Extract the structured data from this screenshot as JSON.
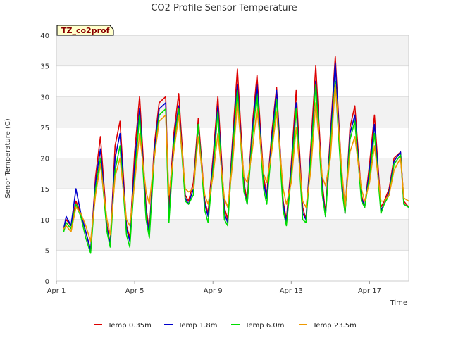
{
  "chart_data": {
    "type": "line",
    "title": "CO2 Profile Sensor Temperature",
    "badge": "TZ_co2prof",
    "xlabel": "Time",
    "ylabel": "Senor Temperature (C)",
    "xlim": [
      "2023-04-01",
      "2023-04-19"
    ],
    "ylim": [
      0,
      40
    ],
    "x_ticks": [
      {
        "date": "2023-04-01",
        "label": "Apr 1"
      },
      {
        "date": "2023-04-05",
        "label": "Apr 5"
      },
      {
        "date": "2023-04-09",
        "label": "Apr 9"
      },
      {
        "date": "2023-04-13",
        "label": "Apr 13"
      },
      {
        "date": "2023-04-17",
        "label": "Apr 17"
      }
    ],
    "y_ticks": [
      0,
      5,
      10,
      15,
      20,
      25,
      30,
      35,
      40
    ],
    "banding": "alternating grey/white bands between y gridlines",
    "legend_position": "bottom",
    "series": [
      {
        "name": "Temp 0.35m",
        "color": "#dd0000",
        "x": [
          "2023-04-01 09:00",
          "2023-04-01 12:00",
          "2023-04-01 18:00",
          "2023-04-02 00:00",
          "2023-04-02 06:00",
          "2023-04-02 12:00",
          "2023-04-02 18:00",
          "2023-04-03 00:00",
          "2023-04-03 06:00",
          "2023-04-03 14:00",
          "2023-04-03 18:00",
          "2023-04-04 00:00",
          "2023-04-04 06:00",
          "2023-04-04 14:00",
          "2023-04-04 18:00",
          "2023-04-05 00:00",
          "2023-04-05 06:00",
          "2023-04-05 14:00",
          "2023-04-05 18:00",
          "2023-04-06 00:00",
          "2023-04-06 06:00",
          "2023-04-06 14:00",
          "2023-04-06 18:00",
          "2023-04-07 00:00",
          "2023-04-07 06:00",
          "2023-04-07 14:00",
          "2023-04-07 18:00",
          "2023-04-08 00:00",
          "2023-04-08 06:00",
          "2023-04-08 14:00",
          "2023-04-08 18:00",
          "2023-04-09 00:00",
          "2023-04-09 06:00",
          "2023-04-09 14:00",
          "2023-04-09 18:00",
          "2023-04-10 00:00",
          "2023-04-10 06:00",
          "2023-04-10 14:00",
          "2023-04-10 18:00",
          "2023-04-11 00:00",
          "2023-04-11 06:00",
          "2023-04-11 14:00",
          "2023-04-11 18:00",
          "2023-04-12 00:00",
          "2023-04-12 06:00",
          "2023-04-12 14:00",
          "2023-04-12 18:00",
          "2023-04-13 00:00",
          "2023-04-13 06:00",
          "2023-04-13 14:00",
          "2023-04-13 18:00",
          "2023-04-14 00:00",
          "2023-04-14 06:00",
          "2023-04-14 14:00",
          "2023-04-14 18:00",
          "2023-04-15 00:00",
          "2023-04-15 06:00",
          "2023-04-15 14:00",
          "2023-04-15 18:00",
          "2023-04-16 00:00",
          "2023-04-16 06:00",
          "2023-04-16 14:00",
          "2023-04-16 18:00",
          "2023-04-17 00:00",
          "2023-04-17 06:00",
          "2023-04-17 14:00",
          "2023-04-17 18:00",
          "2023-04-18 00:00",
          "2023-04-18 06:00",
          "2023-04-18 14:00",
          "2023-04-18 18:00",
          "2023-04-19 00:00"
        ],
        "y": [
          8.5,
          10,
          9,
          13,
          11,
          8,
          5,
          17,
          23.5,
          9,
          6,
          22,
          26,
          9,
          7,
          21,
          30,
          12,
          8,
          22,
          29,
          30,
          12,
          24,
          30.5,
          14,
          13,
          16,
          26.5,
          13,
          11,
          20,
          30,
          12,
          10,
          23,
          34.5,
          16,
          13,
          25,
          33.5,
          17,
          14,
          24,
          31.5,
          13,
          10,
          19,
          31,
          12,
          10,
          22,
          35,
          16,
          11,
          24,
          36.5,
          17,
          11,
          25,
          28.5,
          14,
          12,
          19,
          27,
          12,
          13,
          15,
          20,
          21,
          13,
          12
        ]
      },
      {
        "name": "Temp 1.8m",
        "color": "#0000cc",
        "x": [
          "2023-04-01 09:00",
          "2023-04-01 12:00",
          "2023-04-01 18:00",
          "2023-04-02 00:00",
          "2023-04-02 06:00",
          "2023-04-02 12:00",
          "2023-04-02 18:00",
          "2023-04-03 00:00",
          "2023-04-03 06:00",
          "2023-04-03 14:00",
          "2023-04-03 18:00",
          "2023-04-04 00:00",
          "2023-04-04 06:00",
          "2023-04-04 14:00",
          "2023-04-04 18:00",
          "2023-04-05 00:00",
          "2023-04-05 06:00",
          "2023-04-05 14:00",
          "2023-04-05 18:00",
          "2023-04-06 00:00",
          "2023-04-06 06:00",
          "2023-04-06 14:00",
          "2023-04-06 18:00",
          "2023-04-07 00:00",
          "2023-04-07 06:00",
          "2023-04-07 14:00",
          "2023-04-07 18:00",
          "2023-04-08 00:00",
          "2023-04-08 06:00",
          "2023-04-08 14:00",
          "2023-04-08 18:00",
          "2023-04-09 00:00",
          "2023-04-09 06:00",
          "2023-04-09 14:00",
          "2023-04-09 18:00",
          "2023-04-10 00:00",
          "2023-04-10 06:00",
          "2023-04-10 14:00",
          "2023-04-10 18:00",
          "2023-04-11 00:00",
          "2023-04-11 06:00",
          "2023-04-11 14:00",
          "2023-04-11 18:00",
          "2023-04-12 00:00",
          "2023-04-12 06:00",
          "2023-04-12 14:00",
          "2023-04-12 18:00",
          "2023-04-13 00:00",
          "2023-04-13 06:00",
          "2023-04-13 14:00",
          "2023-04-13 18:00",
          "2023-04-14 00:00",
          "2023-04-14 06:00",
          "2023-04-14 14:00",
          "2023-04-14 18:00",
          "2023-04-15 00:00",
          "2023-04-15 06:00",
          "2023-04-15 14:00",
          "2023-04-15 18:00",
          "2023-04-16 00:00",
          "2023-04-16 06:00",
          "2023-04-16 14:00",
          "2023-04-16 18:00",
          "2023-04-17 00:00",
          "2023-04-17 06:00",
          "2023-04-17 14:00",
          "2023-04-17 18:00",
          "2023-04-18 00:00",
          "2023-04-18 06:00",
          "2023-04-18 14:00",
          "2023-04-18 18:00",
          "2023-04-19 00:00"
        ],
        "y": [
          8.5,
          10.5,
          9,
          15,
          11,
          8,
          5,
          16,
          21.5,
          8.5,
          6,
          20,
          24,
          8.5,
          6.5,
          19,
          28,
          11,
          7.5,
          21,
          28,
          29,
          10,
          23,
          28.5,
          13.5,
          12.5,
          15,
          25.5,
          12.5,
          10.5,
          19,
          28.5,
          11,
          9.5,
          22,
          32,
          15,
          12.5,
          24,
          32,
          16,
          13.5,
          23,
          31,
          12.5,
          9.5,
          18,
          29,
          11,
          10,
          21,
          32.5,
          15,
          10.5,
          23,
          35.5,
          16,
          11,
          24,
          27,
          13.5,
          12,
          18,
          25.5,
          11.5,
          12.5,
          14.5,
          19.5,
          21,
          12.5,
          12
        ]
      },
      {
        "name": "Temp 6.0m",
        "color": "#00dd00",
        "x": [
          "2023-04-01 09:00",
          "2023-04-01 12:00",
          "2023-04-01 18:00",
          "2023-04-02 00:00",
          "2023-04-02 06:00",
          "2023-04-02 12:00",
          "2023-04-02 18:00",
          "2023-04-03 00:00",
          "2023-04-03 06:00",
          "2023-04-03 14:00",
          "2023-04-03 18:00",
          "2023-04-04 00:00",
          "2023-04-04 06:00",
          "2023-04-04 14:00",
          "2023-04-04 18:00",
          "2023-04-05 00:00",
          "2023-04-05 06:00",
          "2023-04-05 14:00",
          "2023-04-05 18:00",
          "2023-04-06 00:00",
          "2023-04-06 06:00",
          "2023-04-06 14:00",
          "2023-04-06 18:00",
          "2023-04-07 00:00",
          "2023-04-07 06:00",
          "2023-04-07 14:00",
          "2023-04-07 18:00",
          "2023-04-08 00:00",
          "2023-04-08 06:00",
          "2023-04-08 14:00",
          "2023-04-08 18:00",
          "2023-04-09 00:00",
          "2023-04-09 06:00",
          "2023-04-09 14:00",
          "2023-04-09 18:00",
          "2023-04-10 00:00",
          "2023-04-10 06:00",
          "2023-04-10 14:00",
          "2023-04-10 18:00",
          "2023-04-11 00:00",
          "2023-04-11 06:00",
          "2023-04-11 14:00",
          "2023-04-11 18:00",
          "2023-04-12 00:00",
          "2023-04-12 06:00",
          "2023-04-12 14:00",
          "2023-04-12 18:00",
          "2023-04-13 00:00",
          "2023-04-13 06:00",
          "2023-04-13 14:00",
          "2023-04-13 18:00",
          "2023-04-14 00:00",
          "2023-04-14 06:00",
          "2023-04-14 14:00",
          "2023-04-14 18:00",
          "2023-04-15 00:00",
          "2023-04-15 06:00",
          "2023-04-15 14:00",
          "2023-04-15 18:00",
          "2023-04-16 00:00",
          "2023-04-16 06:00",
          "2023-04-16 14:00",
          "2023-04-16 18:00",
          "2023-04-17 00:00",
          "2023-04-17 06:00",
          "2023-04-17 14:00",
          "2023-04-17 18:00",
          "2023-04-18 00:00",
          "2023-04-18 06:00",
          "2023-04-18 14:00",
          "2023-04-18 18:00",
          "2023-04-19 00:00"
        ],
        "y": [
          8,
          9.5,
          8.5,
          12.5,
          10.5,
          7,
          4.5,
          15,
          20,
          8,
          5.5,
          18,
          22,
          7.5,
          5.5,
          17,
          27,
          10,
          7,
          20,
          27,
          28,
          9.5,
          22,
          28,
          13,
          12.5,
          14,
          25.5,
          11.5,
          9.5,
          18,
          27.5,
          10,
          9,
          21,
          31,
          14.5,
          12.5,
          23,
          30.5,
          15,
          12.5,
          22,
          29.5,
          11.5,
          9,
          17,
          28,
          10,
          9.5,
          20,
          32,
          14,
          10.5,
          22,
          32.5,
          15,
          11,
          23,
          26,
          13,
          12,
          17,
          24,
          11,
          12.5,
          14,
          19,
          20.5,
          12.5,
          12
        ]
      },
      {
        "name": "Temp 23.5m",
        "color": "#ee9900",
        "x": [
          "2023-04-01 09:00",
          "2023-04-01 12:00",
          "2023-04-01 18:00",
          "2023-04-02 00:00",
          "2023-04-02 06:00",
          "2023-04-02 12:00",
          "2023-04-02 18:00",
          "2023-04-03 00:00",
          "2023-04-03 06:00",
          "2023-04-03 14:00",
          "2023-04-03 18:00",
          "2023-04-04 00:00",
          "2023-04-04 06:00",
          "2023-04-04 14:00",
          "2023-04-04 18:00",
          "2023-04-05 00:00",
          "2023-04-05 06:00",
          "2023-04-05 14:00",
          "2023-04-05 18:00",
          "2023-04-06 00:00",
          "2023-04-06 06:00",
          "2023-04-06 14:00",
          "2023-04-06 18:00",
          "2023-04-07 00:00",
          "2023-04-07 06:00",
          "2023-04-07 14:00",
          "2023-04-07 18:00",
          "2023-04-08 00:00",
          "2023-04-08 06:00",
          "2023-04-08 14:00",
          "2023-04-08 18:00",
          "2023-04-09 00:00",
          "2023-04-09 06:00",
          "2023-04-09 14:00",
          "2023-04-09 18:00",
          "2023-04-10 00:00",
          "2023-04-10 06:00",
          "2023-04-10 14:00",
          "2023-04-10 18:00",
          "2023-04-11 00:00",
          "2023-04-11 06:00",
          "2023-04-11 14:00",
          "2023-04-11 18:00",
          "2023-04-12 00:00",
          "2023-04-12 06:00",
          "2023-04-12 14:00",
          "2023-04-12 18:00",
          "2023-04-13 00:00",
          "2023-04-13 06:00",
          "2023-04-13 14:00",
          "2023-04-13 18:00",
          "2023-04-14 00:00",
          "2023-04-14 06:00",
          "2023-04-14 14:00",
          "2023-04-14 18:00",
          "2023-04-15 00:00",
          "2023-04-15 06:00",
          "2023-04-15 14:00",
          "2023-04-15 18:00",
          "2023-04-16 00:00",
          "2023-04-16 06:00",
          "2023-04-16 14:00",
          "2023-04-16 18:00",
          "2023-04-17 00:00",
          "2023-04-17 06:00",
          "2023-04-17 14:00",
          "2023-04-17 18:00",
          "2023-04-18 00:00",
          "2023-04-18 06:00",
          "2023-04-18 14:00",
          "2023-04-18 18:00",
          "2023-04-19 00:00"
        ],
        "y": [
          8.5,
          9,
          8,
          12,
          11,
          9,
          6.5,
          14,
          19,
          10,
          7.5,
          17,
          20,
          10,
          9,
          16,
          24,
          14.5,
          12.5,
          20,
          26,
          27,
          14,
          21,
          27,
          15,
          14.5,
          15,
          23.5,
          14,
          12.5,
          17,
          24,
          13.5,
          12,
          19,
          29,
          17,
          16,
          21,
          28,
          17.5,
          16,
          21,
          27.5,
          15,
          12.5,
          16,
          25,
          13,
          12,
          18,
          29,
          17,
          15.5,
          20,
          32,
          18,
          12,
          21,
          23.5,
          15,
          13,
          16,
          22,
          13,
          13,
          14,
          18,
          20,
          13.5,
          13
        ]
      }
    ]
  }
}
